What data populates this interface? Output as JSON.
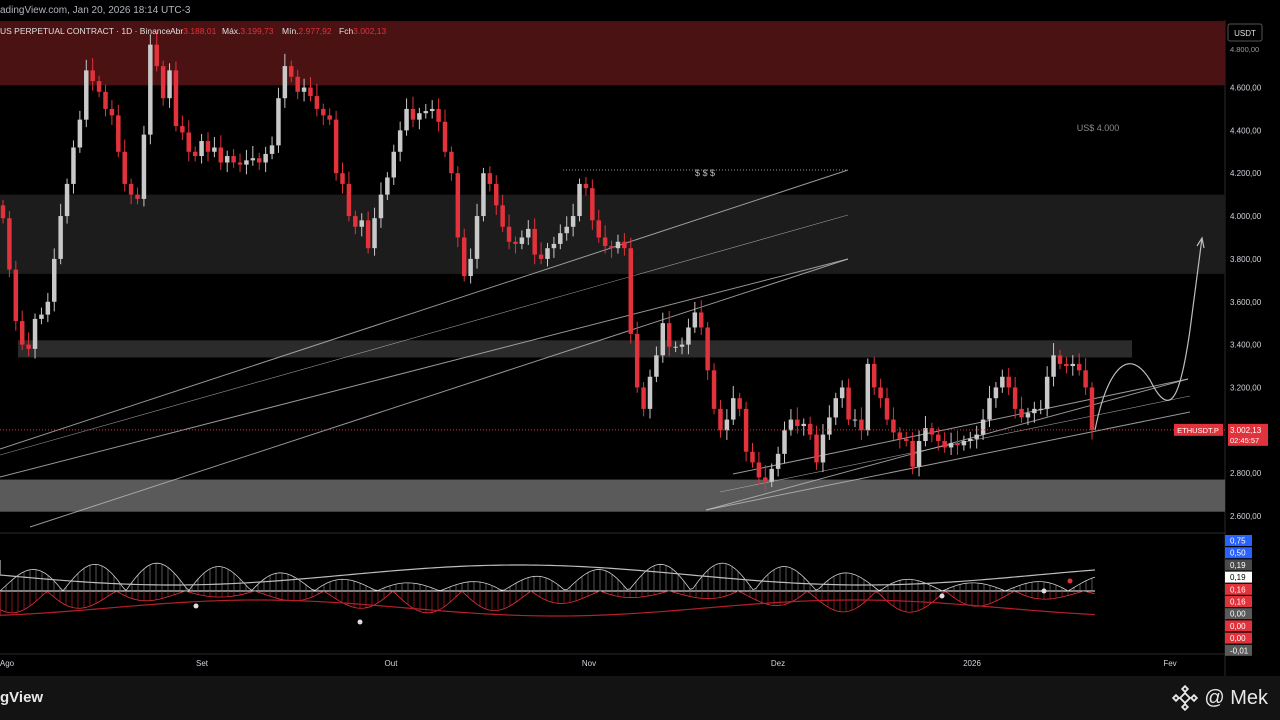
{
  "header": {
    "source": "adingView.com, Jan 20, 2026 18:14 UTC-3"
  },
  "footer": {
    "brand": "gView",
    "signature": "@ Mek",
    "signature_icon": "binance-icon"
  },
  "colors": {
    "up": "#c9c9c9",
    "down": "#e2323b",
    "resistance_zone": "#4a1212",
    "support_zone": "#5a5a5a",
    "price_tag": "#e2323b"
  },
  "chart_data": [
    {
      "type": "candlestick",
      "title": "US PERPETUAL CONTRACT · 1D · Binance",
      "ohlc_summary": {
        "open_label": "Abr",
        "open": "3.188,01",
        "high_label": "Máx.",
        "high": "3.199,73",
        "low_label": "Mín.",
        "low": "2.977,92",
        "close_label": "Fch",
        "close": "3.002,13"
      },
      "currency": "USDT",
      "ylim": [
        2550,
        4850
      ],
      "y_ticks": [
        "4.600,00",
        "4.400,00",
        "4.200,00",
        "4.000,00",
        "3.800,00",
        "3.600,00",
        "3.400,00",
        "3.200,00",
        "2.800,00",
        "2.600,00"
      ],
      "top_tick": "4.800,00",
      "x_ticks": [
        "Ago",
        "Set",
        "Out",
        "Nov",
        "Dez",
        "2026",
        "Fev"
      ],
      "price_tag": {
        "symbol": "ETHUSDT.P",
        "price": "3.002,13",
        "countdown": "02:45:57",
        "value": 3002.13
      },
      "annotations": [
        {
          "text": "$ $ $",
          "price": 4200
        },
        {
          "text": "US$ 4.000",
          "price": 4000
        }
      ],
      "zones": [
        {
          "name": "resistance",
          "from": 4610,
          "to": 4910
        },
        {
          "name": "mid-range",
          "from": 3730,
          "to": 4100
        },
        {
          "name": "gray band",
          "from": 3340,
          "to": 3420
        },
        {
          "name": "support",
          "from": 2620,
          "to": 2770
        }
      ],
      "candles_close": [
        3990,
        3750,
        3510,
        3400,
        3380,
        3520,
        3540,
        3600,
        3800,
        4000,
        4150,
        4320,
        4450,
        4680,
        4630,
        4580,
        4500,
        4470,
        4300,
        4150,
        4100,
        4080,
        4380,
        4800,
        4700,
        4550,
        4680,
        4420,
        4390,
        4300,
        4280,
        4350,
        4300,
        4320,
        4250,
        4280,
        4250,
        4240,
        4260,
        4270,
        4250,
        4290,
        4330,
        4550,
        4700,
        4650,
        4580,
        4600,
        4560,
        4500,
        4470,
        4450,
        4200,
        4150,
        4000,
        3950,
        3980,
        3850,
        3990,
        4100,
        4180,
        4300,
        4400,
        4500,
        4450,
        4480,
        4490,
        4500,
        4440,
        4300,
        4200,
        3900,
        3720,
        3800,
        4000,
        4200,
        4150,
        4050,
        3950,
        3880,
        3870,
        3900,
        3940,
        3820,
        3800,
        3850,
        3870,
        3920,
        3950,
        4000,
        4150,
        4130,
        3980,
        3900,
        3860,
        3850,
        3880,
        3850,
        3450,
        3200,
        3100,
        3250,
        3350,
        3500,
        3390,
        3390,
        3400,
        3480,
        3550,
        3480,
        3280,
        3100,
        3000,
        3050,
        3150,
        3100,
        2900,
        2850,
        2780,
        2760,
        2820,
        2890,
        3000,
        3050,
        3020,
        3030,
        2980,
        2850,
        2980,
        3060,
        3150,
        3200,
        3050,
        3050,
        3000,
        3310,
        3200,
        3150,
        3050,
        2990,
        2960,
        2950,
        2830,
        2950,
        3010,
        2980,
        2950,
        2920,
        2940,
        2930,
        2950,
        2960,
        2980,
        3050,
        3150,
        3200,
        3250,
        3200,
        3100,
        3060,
        3080,
        3100,
        3100,
        3250,
        3350,
        3310,
        3300,
        3310,
        3280,
        3200,
        3002
      ]
    },
    {
      "type": "line",
      "title": "Oscillator",
      "values_labels": [
        {
          "text": "0,75",
          "bg": "#2962ff",
          "fg": "#ffffff"
        },
        {
          "text": "0,50",
          "bg": "#2962ff",
          "fg": "#ffffff"
        },
        {
          "text": "0,19",
          "bg": "#4a4a4a",
          "fg": "#ffffff"
        },
        {
          "text": "0,19",
          "bg": "#ffffff",
          "fg": "#000000"
        },
        {
          "text": "0,16",
          "bg": "#e2323b",
          "fg": "#ffffff"
        },
        {
          "text": "0,16",
          "bg": "#e2323b",
          "fg": "#ffffff"
        },
        {
          "text": "0,00",
          "bg": "#5a5a5a",
          "fg": "#ffffff"
        },
        {
          "text": "0,00",
          "bg": "#e2323b",
          "fg": "#ffffff"
        },
        {
          "text": "0,00",
          "bg": "#e2323b",
          "fg": "#ffffff"
        },
        {
          "text": "-0,01",
          "bg": "#5a5a5a",
          "fg": "#ffffff"
        }
      ]
    }
  ]
}
